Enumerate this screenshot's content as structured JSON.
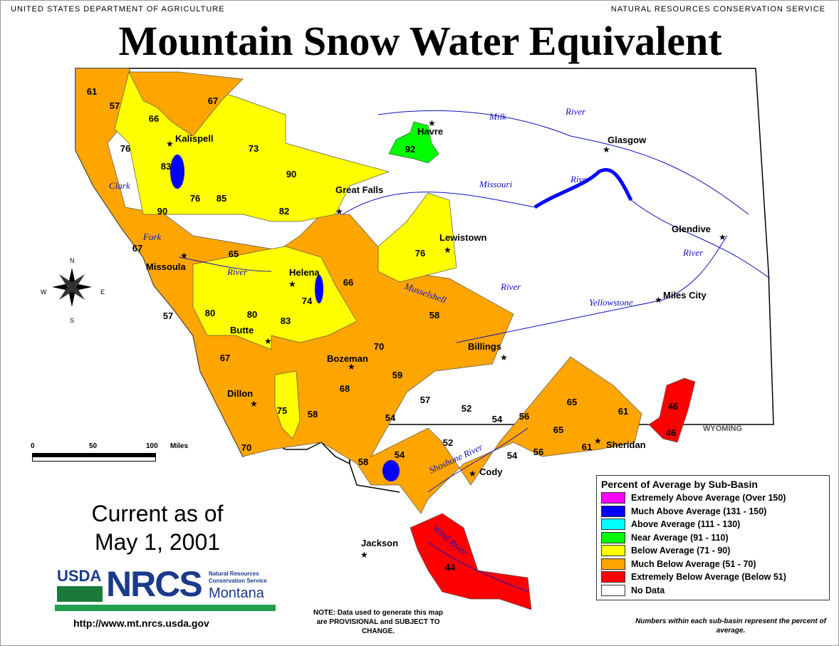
{
  "header": {
    "left_agency": "UNITED STATES DEPARTMENT OF AGRICULTURE",
    "right_agency": "NATURAL RESOURCES CONSERVATION SERVICE",
    "title": "Mountain Snow Water Equivalent"
  },
  "colors": {
    "extremely_above": "#ff00ff",
    "much_above": "#0000ff",
    "above": "#00ffff",
    "near": "#00ff00",
    "below": "#ffff00",
    "much_below": "#ffa500",
    "extremely_below": "#ff0000",
    "no_data": "#ffffff",
    "river": "#1010c0"
  },
  "basins": [
    "61",
    "57",
    "66",
    "67",
    "76",
    "73",
    "83",
    "90",
    "76",
    "85",
    "82",
    "90",
    "92",
    "67",
    "65",
    "76",
    "57",
    "80",
    "80",
    "83",
    "74",
    "66",
    "58",
    "67",
    "70",
    "59",
    "68",
    "75",
    "58",
    "54",
    "57",
    "52",
    "54",
    "56",
    "65",
    "61",
    "46",
    "46",
    "65",
    "61",
    "56",
    "52",
    "54",
    "54",
    "58",
    "70",
    "44"
  ],
  "cities": [
    "Kalispell",
    "Havre",
    "Glasgow",
    "Great Falls",
    "Lewistown",
    "Glendive",
    "Missoula",
    "Helena",
    "Miles City",
    "Butte",
    "Bozeman",
    "Billings",
    "Dillon",
    "Sheridan",
    "Cody",
    "Jackson"
  ],
  "rivers": [
    "Milk",
    "River",
    "Missouri",
    "River",
    "Clark",
    "Fork",
    "River",
    "Musselshell",
    "River",
    "Yellowstone",
    "River",
    "Shoshone River",
    "Wind River"
  ],
  "state_label": "WYOMING",
  "compass": {
    "n": "N",
    "s": "S",
    "e": "E",
    "w": "W"
  },
  "scale": {
    "labels": [
      "0",
      "50",
      "100",
      "Miles"
    ]
  },
  "legend": {
    "title": "Percent of Average by Sub-Basin",
    "items": [
      {
        "label": "Extremely Above Average (Over 150)",
        "color": "#ff00ff"
      },
      {
        "label": "Much Above Average (131 - 150)",
        "color": "#0000ff"
      },
      {
        "label": "Above Average (111 - 130)",
        "color": "#00ffff"
      },
      {
        "label": "Near Average (91 - 110)",
        "color": "#00ff00"
      },
      {
        "label": "Below Average (71 - 90)",
        "color": "#ffff00"
      },
      {
        "label": "Much Below Average (51 - 70)",
        "color": "#ffa500"
      },
      {
        "label": "Extremely Below Average (Below 51)",
        "color": "#ff0000"
      },
      {
        "label": "No Data",
        "color": "#ffffff"
      }
    ]
  },
  "current": {
    "line1": "Current as of",
    "line2": "May 1, 2001"
  },
  "logo": {
    "usda": "USDA",
    "nrcs": "NRCS",
    "sub1": "Natural Resources",
    "sub2": "Conservation Service",
    "state": "Montana"
  },
  "url": "http://www.mt.nrcs.usda.gov",
  "note": "NOTE: Data used to generate this map are PROVISIONAL and SUBJECT TO CHANGE.",
  "number_note": "Numbers within each sub-basin represent the percent of average."
}
